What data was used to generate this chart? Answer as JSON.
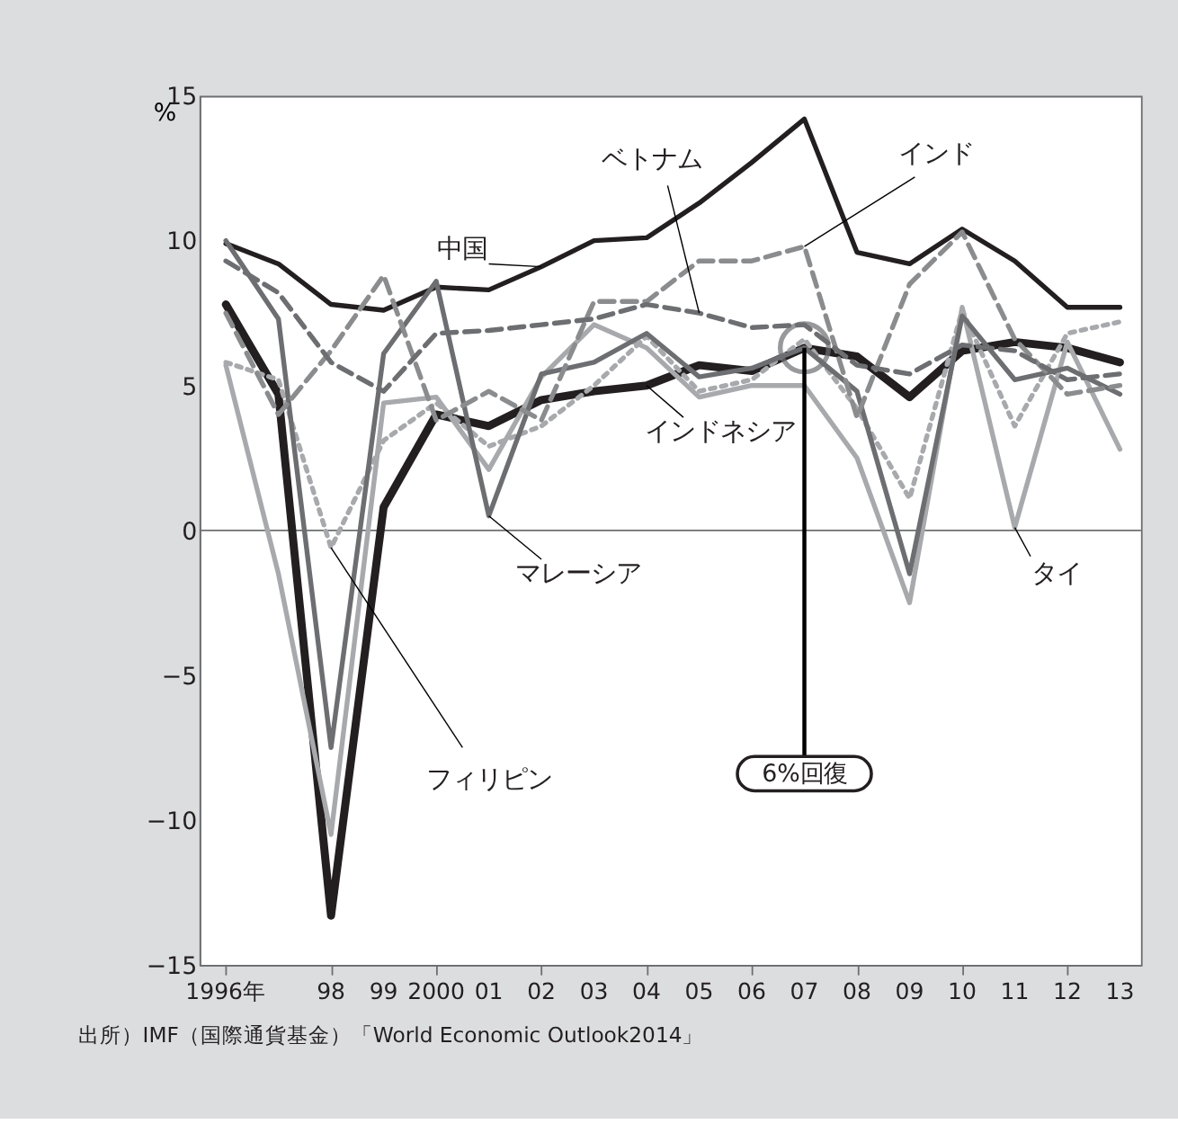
{
  "chart_data": {
    "type": "line",
    "ylabel": "%",
    "categories": [
      "1996年",
      null,
      "98",
      "99",
      "2000",
      "01",
      "02",
      "03",
      "04",
      "05",
      "06",
      "07",
      "08",
      "09",
      "10",
      "11",
      "12",
      "13"
    ],
    "series": [
      {
        "name": "中国",
        "color": "#231f20",
        "line_style": "solid",
        "values": [
          9.9,
          9.2,
          7.8,
          7.6,
          8.4,
          8.3,
          9.1,
          10.0,
          10.1,
          11.3,
          12.7,
          14.2,
          9.6,
          9.2,
          10.4,
          9.3,
          7.7,
          7.7
        ]
      },
      {
        "name": "ベトナム",
        "color": "#6d6e71",
        "line_style": "dashed",
        "values": [
          9.3,
          8.2,
          5.8,
          4.8,
          6.8,
          6.9,
          7.1,
          7.3,
          7.8,
          7.5,
          7.0,
          7.1,
          5.7,
          5.4,
          6.4,
          6.2,
          5.2,
          5.4
        ]
      },
      {
        "name": "インド",
        "color": "#8a8c8e",
        "line_style": "dashed",
        "values": [
          7.5,
          4.0,
          6.2,
          8.8,
          3.8,
          4.8,
          3.8,
          7.9,
          7.9,
          9.3,
          9.3,
          9.8,
          3.9,
          8.5,
          10.3,
          6.6,
          4.7,
          5.0
        ]
      },
      {
        "name": "マレーシア",
        "color": "#6d6e71",
        "line_style": "solid",
        "values": [
          10.0,
          7.3,
          -7.5,
          6.1,
          8.6,
          0.5,
          5.4,
          5.8,
          6.8,
          5.3,
          5.6,
          6.3,
          4.8,
          -1.5,
          7.4,
          5.2,
          5.6,
          4.7
        ]
      },
      {
        "name": "フィリピン",
        "color": "#a7a9ac",
        "line_style": "dotted",
        "values": [
          5.8,
          5.2,
          -0.6,
          3.1,
          4.4,
          2.9,
          3.6,
          5.0,
          6.7,
          4.8,
          5.2,
          6.6,
          4.2,
          1.1,
          7.6,
          3.6,
          6.8,
          7.2
        ]
      },
      {
        "name": "タイ",
        "color": "#a7a9ac",
        "line_style": "solid",
        "values": [
          5.7,
          -1.5,
          -10.5,
          4.4,
          4.6,
          2.1,
          5.3,
          7.1,
          6.3,
          4.6,
          5.0,
          5.0,
          2.5,
          -2.5,
          7.7,
          0.1,
          6.5,
          2.8
        ]
      },
      {
        "name": "インドネシア",
        "color": "#231f20",
        "line_style": "solid",
        "values": [
          7.8,
          4.7,
          -13.3,
          0.8,
          4.0,
          3.6,
          4.5,
          4.8,
          5.0,
          5.7,
          5.5,
          6.3,
          6.0,
          4.6,
          6.2,
          6.5,
          6.3,
          5.8
        ]
      }
    ],
    "ylim": [
      -15,
      15
    ],
    "yticks": [
      15,
      10,
      5,
      0,
      {
        "value": -5,
        "label": "−5"
      },
      {
        "value": -10,
        "label": "−10"
      },
      {
        "value": -15,
        "label": "−15"
      }
    ],
    "ref_lines": [
      {
        "axis": "y",
        "value": 0,
        "color": "#6d6e71"
      }
    ],
    "grid": false,
    "marker": "none",
    "annotations": [
      {
        "text": "6%回復",
        "x": "07",
        "y": 6.3
      },
      "出所）IMF（国際通貨基金）「World Economic Outlook2014」"
    ]
  }
}
